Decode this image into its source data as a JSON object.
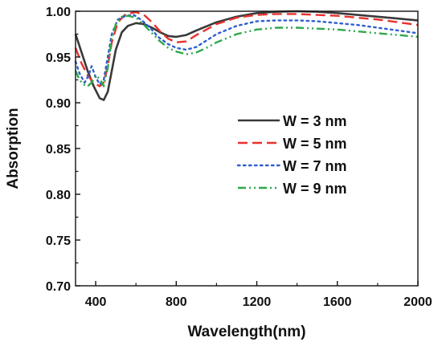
{
  "chart_data": {
    "type": "line",
    "xlabel": "Wavelength(nm)",
    "ylabel": "Absorption",
    "xlim": [
      300,
      2000
    ],
    "ylim": [
      0.7,
      1.0
    ],
    "x_ticks": [
      400,
      800,
      1200,
      1600,
      2000
    ],
    "x_tick_labels": [
      "400",
      "800",
      "1200",
      "1600",
      "2000"
    ],
    "y_ticks": [
      0.7,
      0.75,
      0.8,
      0.85,
      0.9,
      0.95,
      1.0
    ],
    "y_tick_labels": [
      "0.70",
      "0.75",
      "0.80",
      "0.85",
      "0.90",
      "0.95",
      "1.00"
    ],
    "grid": false,
    "legend_position": "center-right",
    "series": [
      {
        "name": "W = 3 nm",
        "color": "#3a3a3a",
        "dash": "solid",
        "x": [
          300,
          330,
          360,
          390,
          420,
          440,
          460,
          480,
          500,
          530,
          560,
          600,
          640,
          680,
          720,
          760,
          800,
          850,
          900,
          1000,
          1100,
          1200,
          1300,
          1400,
          1500,
          1600,
          1700,
          1800,
          1900,
          2000
        ],
        "y": [
          0.975,
          0.955,
          0.935,
          0.918,
          0.905,
          0.903,
          0.912,
          0.935,
          0.958,
          0.977,
          0.984,
          0.987,
          0.986,
          0.982,
          0.977,
          0.973,
          0.972,
          0.974,
          0.979,
          0.988,
          0.994,
          0.998,
          0.9995,
          1.0,
          0.9995,
          0.998,
          0.996,
          0.994,
          0.992,
          0.99
        ]
      },
      {
        "name": "W = 5 nm",
        "color": "#e8302c",
        "dash": "dashed",
        "x": [
          300,
          330,
          360,
          390,
          420,
          440,
          460,
          480,
          510,
          550,
          600,
          640,
          680,
          720,
          760,
          800,
          850,
          900,
          1000,
          1100,
          1200,
          1300,
          1400,
          1500,
          1600,
          1700,
          1800,
          1900,
          2000
        ],
        "y": [
          0.96,
          0.943,
          0.93,
          0.922,
          0.918,
          0.922,
          0.94,
          0.966,
          0.988,
          0.997,
          0.999,
          0.996,
          0.988,
          0.978,
          0.97,
          0.966,
          0.967,
          0.974,
          0.986,
          0.993,
          0.996,
          0.997,
          0.997,
          0.996,
          0.995,
          0.993,
          0.991,
          0.988,
          0.985
        ]
      },
      {
        "name": "W = 7 nm",
        "color": "#2f5fd0",
        "dash": "dotted",
        "x": [
          300,
          320,
          345,
          365,
          380,
          400,
          420,
          440,
          460,
          480,
          510,
          550,
          590,
          630,
          670,
          710,
          760,
          800,
          850,
          900,
          950,
          1000,
          1100,
          1200,
          1300,
          1400,
          1500,
          1600,
          1700,
          1800,
          1900,
          2000
        ],
        "y": [
          0.945,
          0.932,
          0.922,
          0.93,
          0.94,
          0.928,
          0.92,
          0.925,
          0.95,
          0.975,
          0.991,
          0.995,
          0.996,
          0.99,
          0.982,
          0.972,
          0.964,
          0.96,
          0.958,
          0.961,
          0.968,
          0.975,
          0.984,
          0.989,
          0.99,
          0.99,
          0.989,
          0.987,
          0.985,
          0.982,
          0.979,
          0.976
        ]
      },
      {
        "name": "W = 9 nm",
        "color": "#2ea84a",
        "dash": "dashdotdot",
        "x": [
          300,
          320,
          340,
          360,
          380,
          400,
          420,
          440,
          460,
          480,
          500,
          530,
          560,
          600,
          640,
          680,
          720,
          760,
          800,
          850,
          900,
          950,
          1000,
          1100,
          1200,
          1300,
          1400,
          1500,
          1600,
          1700,
          1800,
          1900,
          2000
        ],
        "y": [
          0.935,
          0.925,
          0.92,
          0.918,
          0.922,
          0.93,
          0.926,
          0.918,
          0.938,
          0.97,
          0.986,
          0.994,
          0.995,
          0.993,
          0.985,
          0.976,
          0.967,
          0.96,
          0.956,
          0.953,
          0.955,
          0.96,
          0.966,
          0.975,
          0.98,
          0.982,
          0.982,
          0.981,
          0.98,
          0.978,
          0.976,
          0.974,
          0.972
        ]
      }
    ]
  }
}
